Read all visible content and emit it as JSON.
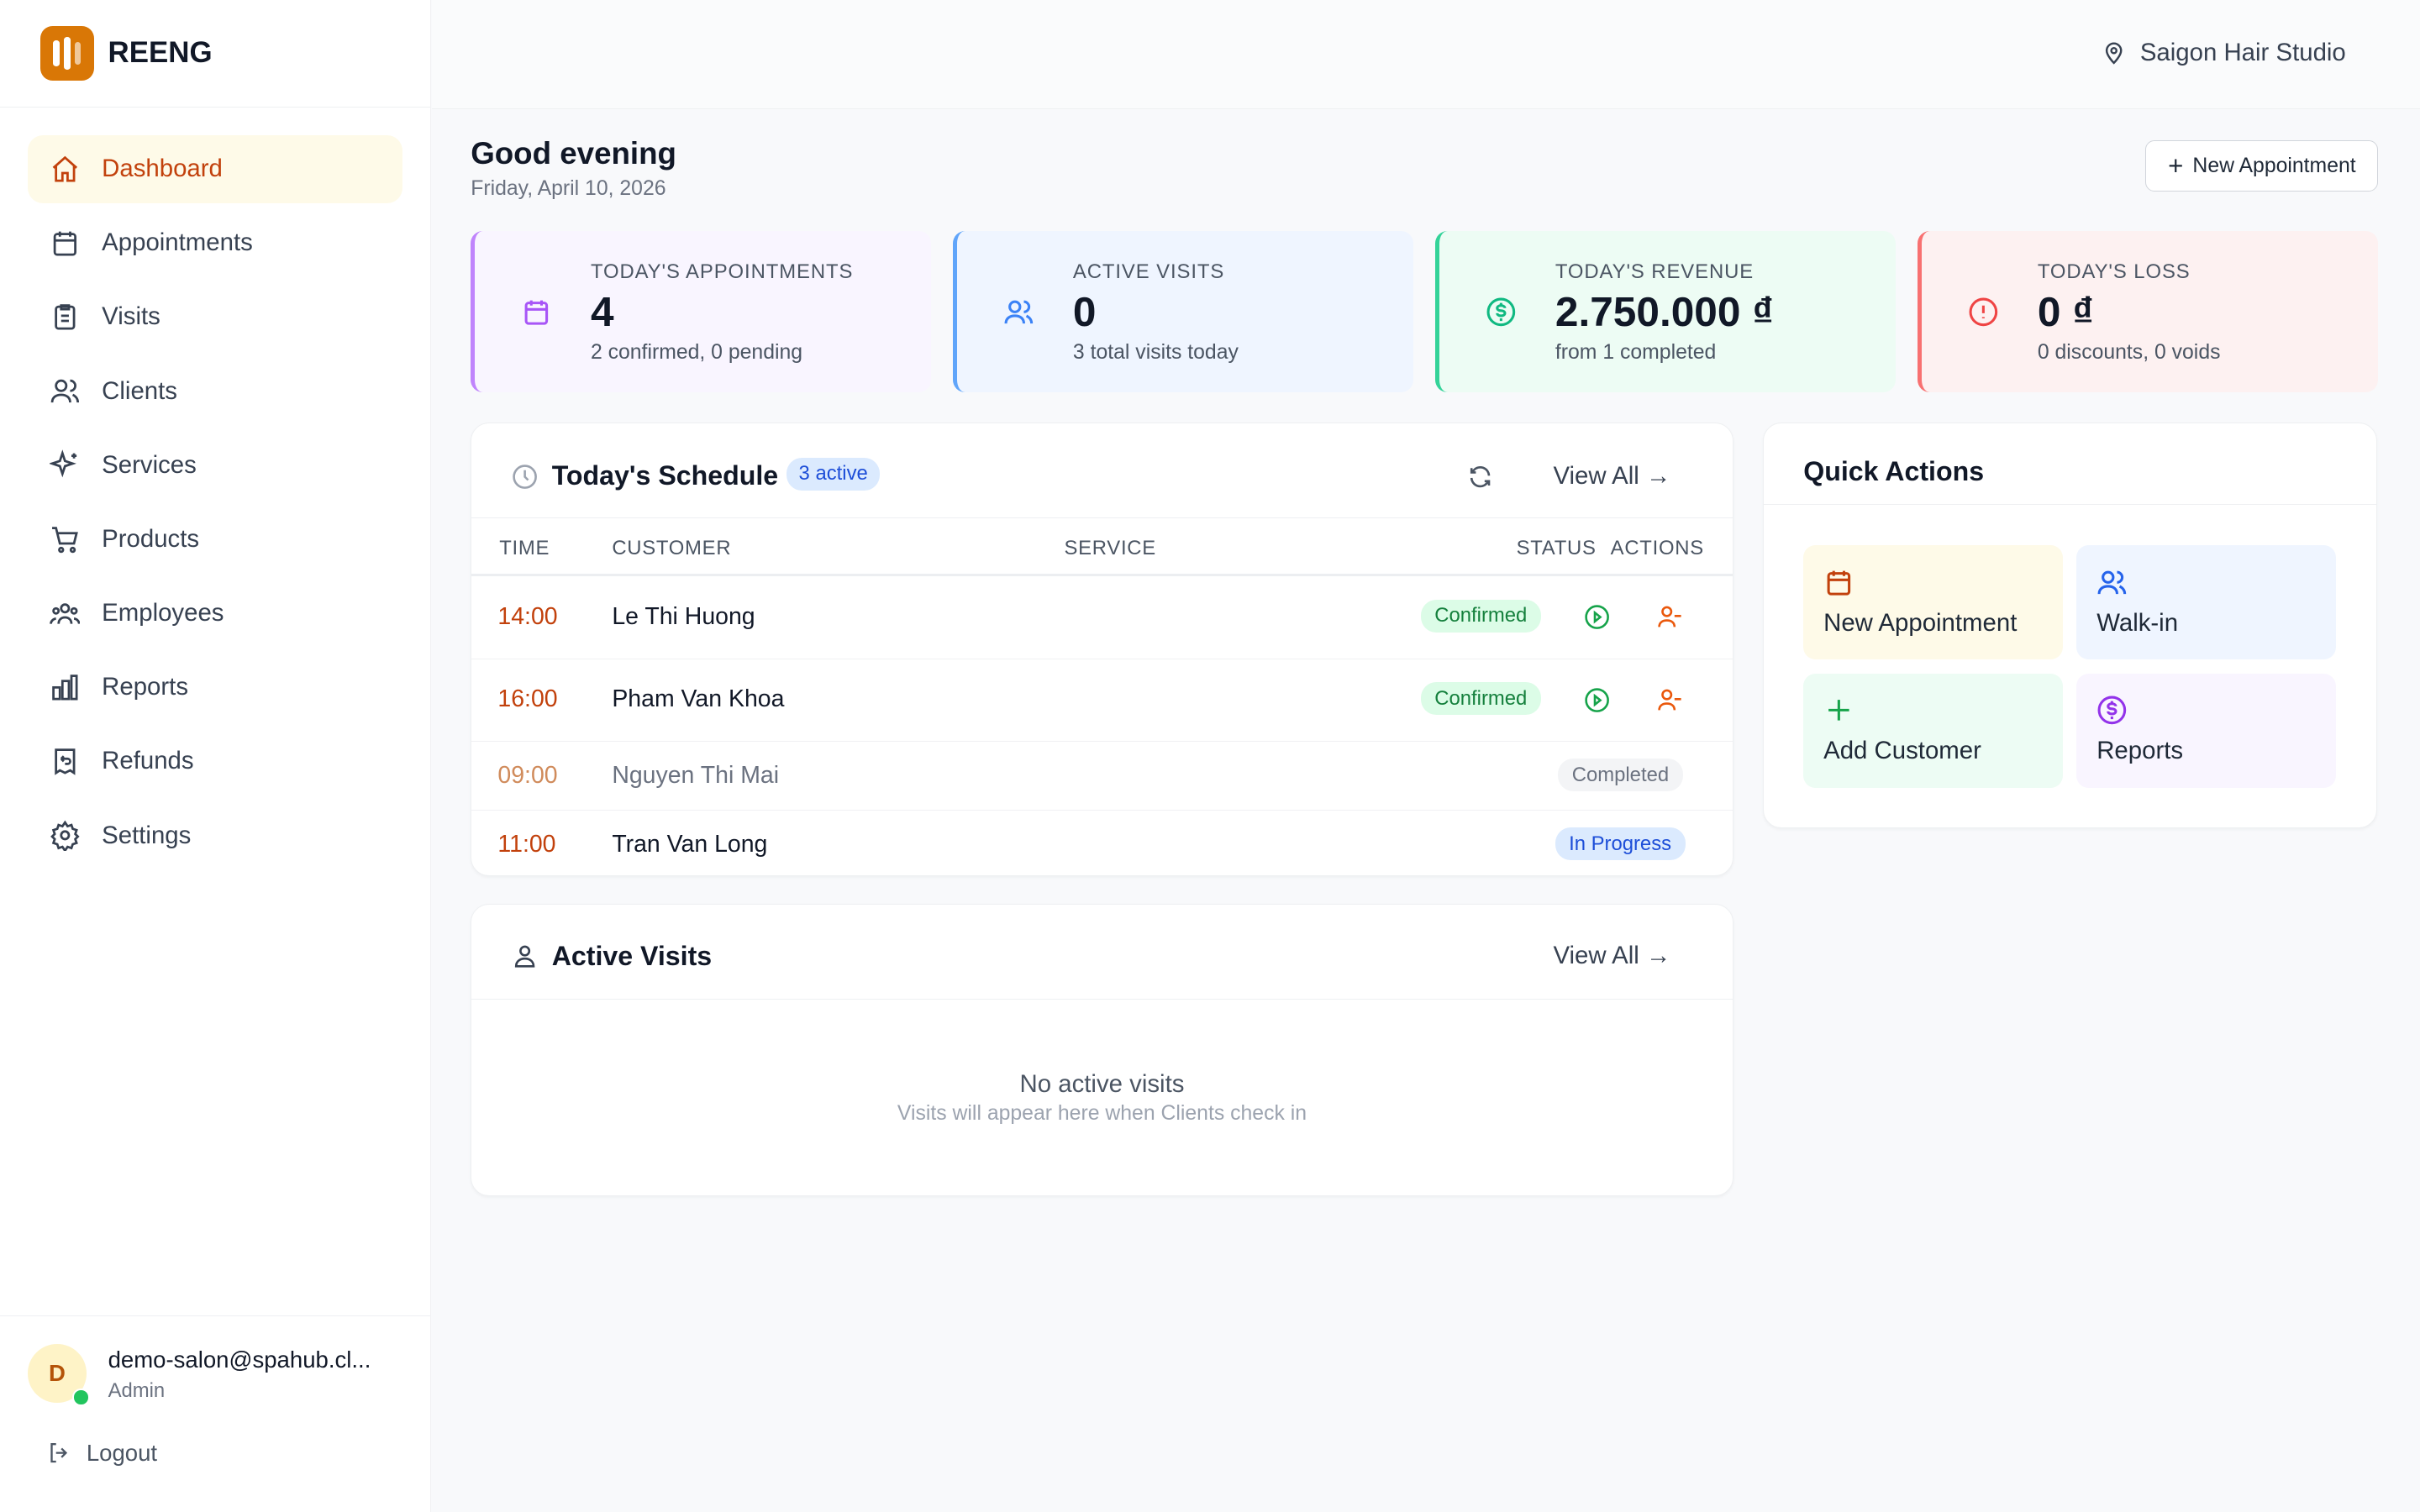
{
  "brand": {
    "name": "REENG",
    "color": "#d97706"
  },
  "sidebar": {
    "items": [
      {
        "label": "Dashboard",
        "icon": "home-icon",
        "active": true
      },
      {
        "label": "Appointments",
        "icon": "calendar-icon"
      },
      {
        "label": "Visits",
        "icon": "clipboard-icon"
      },
      {
        "label": "Clients",
        "icon": "users-icon"
      },
      {
        "label": "Services",
        "icon": "sparkles-icon"
      },
      {
        "label": "Products",
        "icon": "cart-icon"
      },
      {
        "label": "Employees",
        "icon": "team-icon"
      },
      {
        "label": "Reports",
        "icon": "bar-chart-icon"
      },
      {
        "label": "Refunds",
        "icon": "receipt-refund-icon"
      },
      {
        "label": "Settings",
        "icon": "gear-icon"
      }
    ]
  },
  "user": {
    "initial": "D",
    "email": "demo-salon@spahub.cl...",
    "role": "Admin",
    "logout": "Logout"
  },
  "header": {
    "location": "Saigon Hair Studio"
  },
  "page": {
    "greeting": "Good evening",
    "date": "Friday, April 10, 2026",
    "new_appointment": "New Appointment"
  },
  "stats": [
    {
      "label": "TODAY'S APPOINTMENTS",
      "value": "4",
      "sub": "2 confirmed, 0 pending",
      "color": "#a855f7"
    },
    {
      "label": "ACTIVE VISITS",
      "value": "0",
      "sub": "3 total visits today",
      "color": "#3b82f6"
    },
    {
      "label": "TODAY'S REVENUE",
      "value": "2.750.000 ₫",
      "sub": "from 1 completed",
      "color": "#10b981"
    },
    {
      "label": "TODAY'S LOSS",
      "value": "0 ₫",
      "sub": "0 discounts, 0 voids",
      "color": "#ef4444"
    }
  ],
  "schedule": {
    "title": "Today's Schedule",
    "badge": "3 active",
    "view_all": "View All",
    "columns": [
      "TIME",
      "CUSTOMER",
      "SERVICE",
      "STATUS",
      "ACTIONS"
    ],
    "rows": [
      {
        "time": "14:00",
        "customer": "Le Thi Huong",
        "status": "Confirmed"
      },
      {
        "time": "16:00",
        "customer": "Pham Van Khoa",
        "status": "Confirmed"
      },
      {
        "time": "09:00",
        "customer": "Nguyen Thi Mai",
        "status": "Completed"
      },
      {
        "time": "11:00",
        "customer": "Tran Van Long",
        "status": "In Progress"
      }
    ]
  },
  "quick_actions": {
    "title": "Quick Actions",
    "items": [
      {
        "label": "New Appointment"
      },
      {
        "label": "Walk-in"
      },
      {
        "label": "Add Customer"
      },
      {
        "label": "Reports"
      }
    ]
  },
  "active_visits": {
    "title": "Active Visits",
    "view_all": "View All",
    "empty_title": "No active visits",
    "empty_sub": "Visits will appear here when Clients check in"
  }
}
